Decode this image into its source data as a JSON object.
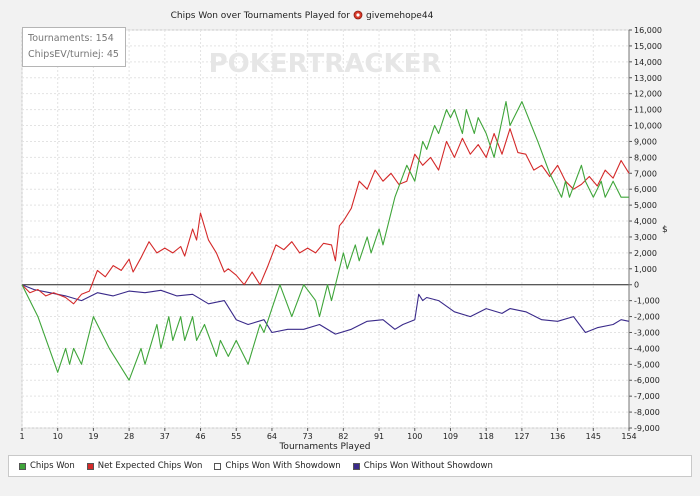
{
  "title_prefix": "Chips Won over Tournaments Played for",
  "player": "givemehope44",
  "watermark": "POKERTRACKER",
  "info": {
    "tournaments": "Tournaments: 154",
    "chipsev": "ChipsEV/turniej: 45"
  },
  "legend": [
    {
      "label": "Chips Won",
      "color": "#3fa53a"
    },
    {
      "label": "Net Expected Chips Won",
      "color": "#d42a2a"
    },
    {
      "label": "Chips Won With Showdown",
      "color": "#ffffff"
    },
    {
      "label": "Chips Won Without Showdown",
      "color": "#3a2a8a"
    }
  ],
  "chart_data": {
    "type": "line",
    "xlabel": "Tournaments Played",
    "ylabel": "$",
    "xlim": [
      1,
      154
    ],
    "ylim": [
      -9000,
      16000
    ],
    "x_ticks": [
      1,
      10,
      19,
      28,
      37,
      46,
      55,
      64,
      73,
      82,
      91,
      100,
      109,
      118,
      127,
      136,
      145,
      154
    ],
    "y_ticks": [
      16000,
      15000,
      14000,
      13000,
      12000,
      11000,
      10000,
      9000,
      8000,
      7000,
      6000,
      5000,
      4000,
      3000,
      2000,
      1000,
      0,
      -1000,
      -2000,
      -3000,
      -4000,
      -5000,
      -6000,
      -7000,
      -8000,
      -9000
    ],
    "y_tick_labels": [
      "16,000",
      "15,000",
      "14,000",
      "13,000",
      "12,000",
      "11,000",
      "10,000",
      "9,000",
      "8,000",
      "7,000",
      "6,000",
      "5,000",
      "4,000",
      "3,000",
      "2,000",
      "1,000",
      "0",
      "-1,000",
      "-2,000",
      "-3,000",
      "-4,000",
      "-5,000",
      "-6,000",
      "-7,000",
      "-8,000",
      "-9,000"
    ],
    "grid": true,
    "legend_position": "bottom",
    "series": [
      {
        "name": "Chips Won",
        "color": "#3fa53a",
        "points": [
          [
            1,
            0
          ],
          [
            5,
            -2000
          ],
          [
            10,
            -5500
          ],
          [
            12,
            -4000
          ],
          [
            13,
            -5000
          ],
          [
            14,
            -4000
          ],
          [
            16,
            -5000
          ],
          [
            19,
            -2000
          ],
          [
            23,
            -4000
          ],
          [
            28,
            -6000
          ],
          [
            31,
            -4000
          ],
          [
            32,
            -5000
          ],
          [
            35,
            -2500
          ],
          [
            36,
            -4000
          ],
          [
            38,
            -2000
          ],
          [
            39,
            -3500
          ],
          [
            41,
            -2000
          ],
          [
            42,
            -3500
          ],
          [
            44,
            -2000
          ],
          [
            45,
            -3500
          ],
          [
            47,
            -2500
          ],
          [
            50,
            -4500
          ],
          [
            51,
            -3500
          ],
          [
            53,
            -4500
          ],
          [
            55,
            -3500
          ],
          [
            58,
            -5000
          ],
          [
            61,
            -2500
          ],
          [
            62,
            -3000
          ],
          [
            64,
            -1500
          ],
          [
            66,
            0
          ],
          [
            69,
            -2000
          ],
          [
            72,
            0
          ],
          [
            75,
            -1000
          ],
          [
            76,
            -2000
          ],
          [
            78,
            0
          ],
          [
            79,
            -1000
          ],
          [
            82,
            2000
          ],
          [
            83,
            1000
          ],
          [
            85,
            2500
          ],
          [
            86,
            1500
          ],
          [
            88,
            3000
          ],
          [
            89,
            2000
          ],
          [
            91,
            3500
          ],
          [
            92,
            2500
          ],
          [
            95,
            5500
          ],
          [
            98,
            7500
          ],
          [
            100,
            6500
          ],
          [
            102,
            9000
          ],
          [
            103,
            8500
          ],
          [
            105,
            10000
          ],
          [
            106,
            9500
          ],
          [
            108,
            11000
          ],
          [
            109,
            10500
          ],
          [
            110,
            11000
          ],
          [
            112,
            9500
          ],
          [
            113,
            11000
          ],
          [
            115,
            9500
          ],
          [
            116,
            10500
          ],
          [
            118,
            9500
          ],
          [
            120,
            8000
          ],
          [
            123,
            11500
          ],
          [
            124,
            10000
          ],
          [
            127,
            11500
          ],
          [
            131,
            9000
          ],
          [
            134,
            7000
          ],
          [
            137,
            5500
          ],
          [
            138,
            6500
          ],
          [
            139,
            5500
          ],
          [
            142,
            7500
          ],
          [
            143,
            6500
          ],
          [
            145,
            5500
          ],
          [
            147,
            6500
          ],
          [
            148,
            5500
          ],
          [
            150,
            6500
          ],
          [
            152,
            5500
          ],
          [
            154,
            5500
          ]
        ]
      },
      {
        "name": "Net Expected Chips Won",
        "color": "#d42a2a",
        "points": [
          [
            1,
            0
          ],
          [
            3,
            -500
          ],
          [
            5,
            -300
          ],
          [
            7,
            -700
          ],
          [
            9,
            -500
          ],
          [
            12,
            -800
          ],
          [
            14,
            -1200
          ],
          [
            16,
            -600
          ],
          [
            18,
            -400
          ],
          [
            20,
            900
          ],
          [
            22,
            500
          ],
          [
            24,
            1200
          ],
          [
            26,
            900
          ],
          [
            28,
            1600
          ],
          [
            29,
            800
          ],
          [
            31,
            1700
          ],
          [
            33,
            2700
          ],
          [
            35,
            2000
          ],
          [
            37,
            2300
          ],
          [
            39,
            2000
          ],
          [
            41,
            2400
          ],
          [
            42,
            1800
          ],
          [
            44,
            3500
          ],
          [
            45,
            2800
          ],
          [
            46,
            4500
          ],
          [
            48,
            2800
          ],
          [
            50,
            2000
          ],
          [
            52,
            800
          ],
          [
            53,
            1000
          ],
          [
            55,
            600
          ],
          [
            57,
            0
          ],
          [
            59,
            800
          ],
          [
            61,
            0
          ],
          [
            63,
            1200
          ],
          [
            65,
            2500
          ],
          [
            67,
            2200
          ],
          [
            69,
            2700
          ],
          [
            71,
            2000
          ],
          [
            73,
            2300
          ],
          [
            75,
            2000
          ],
          [
            77,
            2600
          ],
          [
            79,
            2500
          ],
          [
            80,
            1500
          ],
          [
            81,
            3700
          ],
          [
            82,
            4000
          ],
          [
            84,
            4800
          ],
          [
            86,
            6500
          ],
          [
            88,
            6000
          ],
          [
            90,
            7200
          ],
          [
            92,
            6500
          ],
          [
            94,
            7000
          ],
          [
            96,
            6300
          ],
          [
            98,
            6500
          ],
          [
            100,
            8200
          ],
          [
            102,
            7500
          ],
          [
            104,
            8000
          ],
          [
            106,
            7200
          ],
          [
            108,
            9000
          ],
          [
            110,
            8000
          ],
          [
            112,
            9200
          ],
          [
            114,
            8200
          ],
          [
            116,
            8800
          ],
          [
            118,
            8000
          ],
          [
            120,
            9500
          ],
          [
            122,
            8200
          ],
          [
            124,
            9800
          ],
          [
            126,
            8300
          ],
          [
            128,
            8200
          ],
          [
            130,
            7200
          ],
          [
            132,
            7500
          ],
          [
            134,
            6800
          ],
          [
            136,
            7500
          ],
          [
            138,
            6500
          ],
          [
            140,
            6000
          ],
          [
            142,
            6300
          ],
          [
            144,
            6800
          ],
          [
            146,
            6200
          ],
          [
            148,
            7200
          ],
          [
            150,
            6700
          ],
          [
            152,
            7800
          ],
          [
            154,
            7000
          ]
        ]
      },
      {
        "name": "Chips Won Without Showdown",
        "color": "#3a2a8a",
        "points": [
          [
            1,
            0
          ],
          [
            4,
            -300
          ],
          [
            8,
            -500
          ],
          [
            12,
            -700
          ],
          [
            16,
            -1000
          ],
          [
            20,
            -500
          ],
          [
            24,
            -700
          ],
          [
            28,
            -400
          ],
          [
            32,
            -500
          ],
          [
            36,
            -350
          ],
          [
            40,
            -700
          ],
          [
            44,
            -600
          ],
          [
            48,
            -1200
          ],
          [
            52,
            -1000
          ],
          [
            55,
            -2200
          ],
          [
            58,
            -2500
          ],
          [
            62,
            -2200
          ],
          [
            64,
            -3000
          ],
          [
            68,
            -2800
          ],
          [
            72,
            -2800
          ],
          [
            76,
            -2500
          ],
          [
            80,
            -3100
          ],
          [
            84,
            -2800
          ],
          [
            88,
            -2300
          ],
          [
            92,
            -2200
          ],
          [
            95,
            -2800
          ],
          [
            97,
            -2500
          ],
          [
            100,
            -2200
          ],
          [
            101,
            -600
          ],
          [
            102,
            -1000
          ],
          [
            103,
            -800
          ],
          [
            106,
            -1000
          ],
          [
            110,
            -1700
          ],
          [
            114,
            -2000
          ],
          [
            118,
            -1500
          ],
          [
            122,
            -1800
          ],
          [
            124,
            -1500
          ],
          [
            128,
            -1700
          ],
          [
            132,
            -2200
          ],
          [
            136,
            -2300
          ],
          [
            140,
            -2000
          ],
          [
            143,
            -3000
          ],
          [
            146,
            -2700
          ],
          [
            150,
            -2500
          ],
          [
            152,
            -2200
          ],
          [
            154,
            -2300
          ]
        ]
      }
    ]
  }
}
